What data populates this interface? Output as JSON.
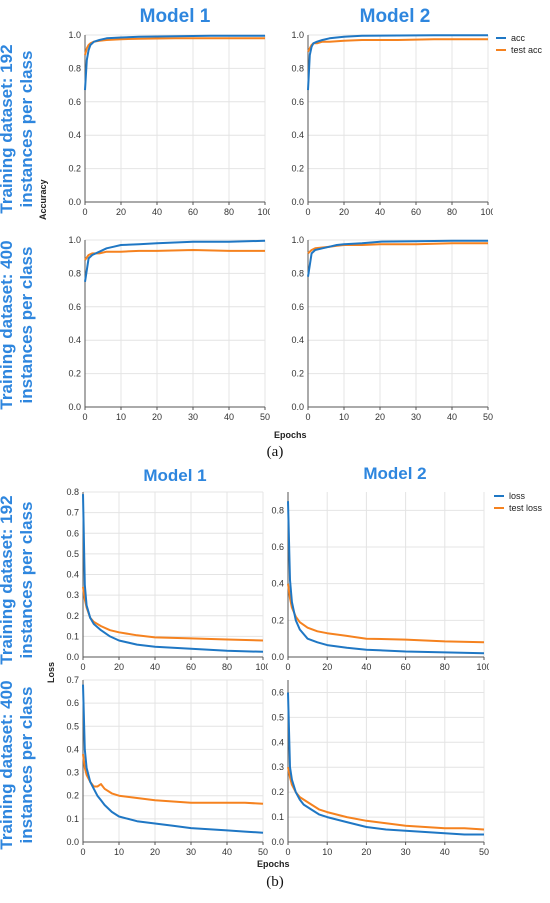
{
  "panel_a": {
    "caption": "(a)",
    "model_titles": [
      "Model 1",
      "Model 2"
    ],
    "row_labels": [
      [
        "Training dataset: 192",
        "instances per class"
      ],
      [
        "Training dataset: 400",
        "instances per class"
      ]
    ],
    "y_axis_word": "Accuracy",
    "x_axis_word": "Epochs",
    "legend": [
      {
        "label": "acc",
        "color": "#1f77c4"
      },
      {
        "label": "test acc",
        "color": "#f5821f"
      }
    ]
  },
  "panel_b": {
    "caption": "(b)",
    "model_titles": [
      "Model 1",
      "Model 2"
    ],
    "row_labels": [
      [
        "Training dataset: 192",
        "instances per class"
      ],
      [
        "Training dataset: 400",
        "instances per class"
      ]
    ],
    "y_axis_word": "Loss",
    "x_axis_word": "Epochs",
    "legend": [
      {
        "label": "loss",
        "color": "#1f77c4"
      },
      {
        "label": "test loss",
        "color": "#f5821f"
      }
    ]
  },
  "chart_data": [
    {
      "type": "line",
      "xlabel": "",
      "ylabel": "Accuracy",
      "xlim": [
        0,
        100
      ],
      "ylim": [
        0,
        1
      ],
      "xticks": [
        0,
        20,
        40,
        60,
        80,
        100
      ],
      "yticks": [
        "0.0",
        "0.2",
        "0.4",
        "0.6",
        "0.8",
        "1.0"
      ],
      "grid": true,
      "series": [
        {
          "name": "acc",
          "color": "#1f77c4",
          "x": [
            0,
            1,
            2,
            3,
            5,
            8,
            12,
            20,
            30,
            50,
            70,
            100
          ],
          "values": [
            0.67,
            0.85,
            0.91,
            0.94,
            0.96,
            0.97,
            0.98,
            0.985,
            0.99,
            0.993,
            0.995,
            0.996
          ]
        },
        {
          "name": "test acc",
          "color": "#f5821f",
          "x": [
            0,
            1,
            2,
            3,
            5,
            8,
            12,
            20,
            30,
            50,
            70,
            100
          ],
          "values": [
            0.88,
            0.92,
            0.94,
            0.95,
            0.96,
            0.965,
            0.97,
            0.975,
            0.978,
            0.98,
            0.98,
            0.98
          ]
        }
      ]
    },
    {
      "type": "line",
      "xlabel": "",
      "ylabel": "",
      "xlim": [
        0,
        100
      ],
      "ylim": [
        0,
        1
      ],
      "xticks": [
        0,
        20,
        40,
        60,
        80,
        100
      ],
      "yticks": [
        "0.0",
        "0.2",
        "0.4",
        "0.6",
        "0.8",
        "1.0"
      ],
      "grid": true,
      "series": [
        {
          "name": "acc",
          "color": "#1f77c4",
          "x": [
            0,
            1,
            2,
            3,
            5,
            8,
            12,
            20,
            30,
            50,
            70,
            100
          ],
          "values": [
            0.67,
            0.88,
            0.93,
            0.95,
            0.96,
            0.97,
            0.98,
            0.99,
            0.995,
            0.997,
            0.998,
            0.998
          ]
        },
        {
          "name": "test acc",
          "color": "#f5821f",
          "x": [
            0,
            1,
            2,
            3,
            5,
            8,
            12,
            20,
            30,
            50,
            70,
            100
          ],
          "values": [
            0.9,
            0.92,
            0.94,
            0.95,
            0.95,
            0.96,
            0.96,
            0.965,
            0.97,
            0.97,
            0.975,
            0.975
          ]
        }
      ]
    },
    {
      "type": "line",
      "xlabel": "",
      "ylabel": "",
      "xlim": [
        0,
        50
      ],
      "ylim": [
        0,
        1
      ],
      "xticks": [
        0,
        10,
        20,
        30,
        40,
        50
      ],
      "yticks": [
        "0.0",
        "0.2",
        "0.4",
        "0.6",
        "0.8",
        "1.0"
      ],
      "grid": true,
      "series": [
        {
          "name": "acc",
          "color": "#1f77c4",
          "x": [
            0,
            1,
            2,
            4,
            6,
            8,
            10,
            15,
            20,
            30,
            40,
            50
          ],
          "values": [
            0.75,
            0.89,
            0.91,
            0.93,
            0.95,
            0.96,
            0.97,
            0.975,
            0.98,
            0.99,
            0.99,
            0.995
          ]
        },
        {
          "name": "test acc",
          "color": "#f5821f",
          "x": [
            0,
            1,
            2,
            4,
            6,
            8,
            10,
            15,
            20,
            30,
            40,
            50
          ],
          "values": [
            0.88,
            0.91,
            0.92,
            0.92,
            0.93,
            0.93,
            0.93,
            0.935,
            0.935,
            0.94,
            0.935,
            0.935
          ]
        }
      ]
    },
    {
      "type": "line",
      "xlabel": "Epochs",
      "ylabel": "",
      "xlim": [
        0,
        50
      ],
      "ylim": [
        0,
        1
      ],
      "xticks": [
        0,
        10,
        20,
        30,
        40,
        50
      ],
      "yticks": [
        "0.0",
        "0.2",
        "0.4",
        "0.6",
        "0.8",
        "1.0"
      ],
      "grid": true,
      "series": [
        {
          "name": "acc",
          "color": "#1f77c4",
          "x": [
            0,
            1,
            2,
            4,
            6,
            8,
            10,
            15,
            20,
            30,
            40,
            50
          ],
          "values": [
            0.78,
            0.92,
            0.94,
            0.95,
            0.96,
            0.97,
            0.975,
            0.98,
            0.99,
            0.993,
            0.995,
            0.996
          ]
        },
        {
          "name": "test acc",
          "color": "#f5821f",
          "x": [
            0,
            1,
            2,
            4,
            6,
            8,
            10,
            15,
            20,
            30,
            40,
            50
          ],
          "values": [
            0.92,
            0.94,
            0.95,
            0.955,
            0.96,
            0.965,
            0.97,
            0.97,
            0.975,
            0.975,
            0.98,
            0.98
          ]
        }
      ]
    },
    {
      "type": "line",
      "xlabel": "",
      "ylabel": "Loss",
      "xlim": [
        0,
        100
      ],
      "ylim": [
        0,
        0.8
      ],
      "xticks": [
        0,
        20,
        40,
        60,
        80,
        100
      ],
      "yticks": [
        "0.0",
        "0.1",
        "0.2",
        "0.3",
        "0.4",
        "0.5",
        "0.6",
        "0.7",
        "0.8"
      ],
      "grid": true,
      "series": [
        {
          "name": "loss",
          "color": "#1f77c4",
          "x": [
            0,
            1,
            2,
            4,
            6,
            10,
            15,
            20,
            30,
            40,
            60,
            80,
            100
          ],
          "values": [
            0.79,
            0.35,
            0.25,
            0.19,
            0.16,
            0.13,
            0.1,
            0.08,
            0.06,
            0.05,
            0.04,
            0.03,
            0.025
          ]
        },
        {
          "name": "test loss",
          "color": "#f5821f",
          "x": [
            0,
            1,
            2,
            4,
            6,
            10,
            15,
            20,
            30,
            40,
            60,
            80,
            100
          ],
          "values": [
            0.34,
            0.28,
            0.24,
            0.19,
            0.17,
            0.15,
            0.13,
            0.12,
            0.105,
            0.095,
            0.09,
            0.085,
            0.08
          ]
        }
      ]
    },
    {
      "type": "line",
      "xlabel": "",
      "ylabel": "",
      "xlim": [
        0,
        100
      ],
      "ylim": [
        0,
        0.9
      ],
      "xticks": [
        0,
        20,
        40,
        60,
        80,
        100
      ],
      "yticks": [
        "0.0",
        "0.2",
        "0.4",
        "0.6",
        "0.8"
      ],
      "grid": true,
      "series": [
        {
          "name": "loss",
          "color": "#1f77c4",
          "x": [
            0,
            1,
            2,
            4,
            6,
            10,
            15,
            20,
            30,
            40,
            60,
            80,
            100
          ],
          "values": [
            0.85,
            0.42,
            0.3,
            0.2,
            0.15,
            0.1,
            0.08,
            0.065,
            0.05,
            0.04,
            0.03,
            0.025,
            0.02
          ]
        },
        {
          "name": "test loss",
          "color": "#f5821f",
          "x": [
            0,
            1,
            2,
            4,
            6,
            10,
            15,
            20,
            30,
            40,
            60,
            80,
            100
          ],
          "values": [
            0.4,
            0.32,
            0.27,
            0.22,
            0.19,
            0.16,
            0.14,
            0.13,
            0.115,
            0.1,
            0.095,
            0.085,
            0.08
          ]
        }
      ]
    },
    {
      "type": "line",
      "xlabel": "",
      "ylabel": "",
      "xlim": [
        0,
        50
      ],
      "ylim": [
        0,
        0.7
      ],
      "xticks": [
        0,
        10,
        20,
        30,
        40,
        50
      ],
      "yticks": [
        "0.0",
        "0.1",
        "0.2",
        "0.3",
        "0.4",
        "0.5",
        "0.6",
        "0.7"
      ],
      "grid": true,
      "series": [
        {
          "name": "loss",
          "color": "#1f77c4",
          "x": [
            0,
            0.5,
            1,
            2,
            3,
            4,
            5,
            6,
            8,
            10,
            15,
            20,
            25,
            30,
            35,
            40,
            45,
            50
          ],
          "values": [
            0.68,
            0.4,
            0.32,
            0.26,
            0.23,
            0.2,
            0.18,
            0.16,
            0.13,
            0.11,
            0.09,
            0.08,
            0.07,
            0.06,
            0.055,
            0.05,
            0.045,
            0.04
          ]
        },
        {
          "name": "test loss",
          "color": "#f5821f",
          "x": [
            0,
            0.5,
            1,
            2,
            3,
            4,
            5,
            6,
            8,
            10,
            15,
            20,
            25,
            30,
            35,
            40,
            45,
            50
          ],
          "values": [
            0.38,
            0.32,
            0.29,
            0.26,
            0.24,
            0.24,
            0.25,
            0.23,
            0.21,
            0.2,
            0.19,
            0.18,
            0.175,
            0.17,
            0.17,
            0.17,
            0.17,
            0.165
          ]
        }
      ]
    },
    {
      "type": "line",
      "xlabel": "Epochs",
      "ylabel": "",
      "xlim": [
        0,
        50
      ],
      "ylim": [
        0,
        0.65
      ],
      "xticks": [
        0,
        10,
        20,
        30,
        40,
        50
      ],
      "yticks": [
        "0.0",
        "0.1",
        "0.2",
        "0.3",
        "0.4",
        "0.5",
        "0.6"
      ],
      "grid": true,
      "series": [
        {
          "name": "loss",
          "color": "#1f77c4",
          "x": [
            0,
            0.5,
            1,
            2,
            3,
            4,
            6,
            8,
            10,
            15,
            20,
            25,
            30,
            35,
            40,
            45,
            50
          ],
          "values": [
            0.6,
            0.3,
            0.25,
            0.2,
            0.17,
            0.15,
            0.13,
            0.11,
            0.1,
            0.08,
            0.06,
            0.05,
            0.045,
            0.04,
            0.035,
            0.03,
            0.03
          ]
        },
        {
          "name": "test loss",
          "color": "#f5821f",
          "x": [
            0,
            0.5,
            1,
            2,
            3,
            4,
            6,
            8,
            10,
            15,
            20,
            25,
            30,
            35,
            40,
            45,
            50
          ],
          "values": [
            0.3,
            0.26,
            0.23,
            0.2,
            0.18,
            0.17,
            0.15,
            0.13,
            0.12,
            0.1,
            0.085,
            0.075,
            0.065,
            0.06,
            0.055,
            0.055,
            0.05
          ]
        }
      ]
    }
  ]
}
